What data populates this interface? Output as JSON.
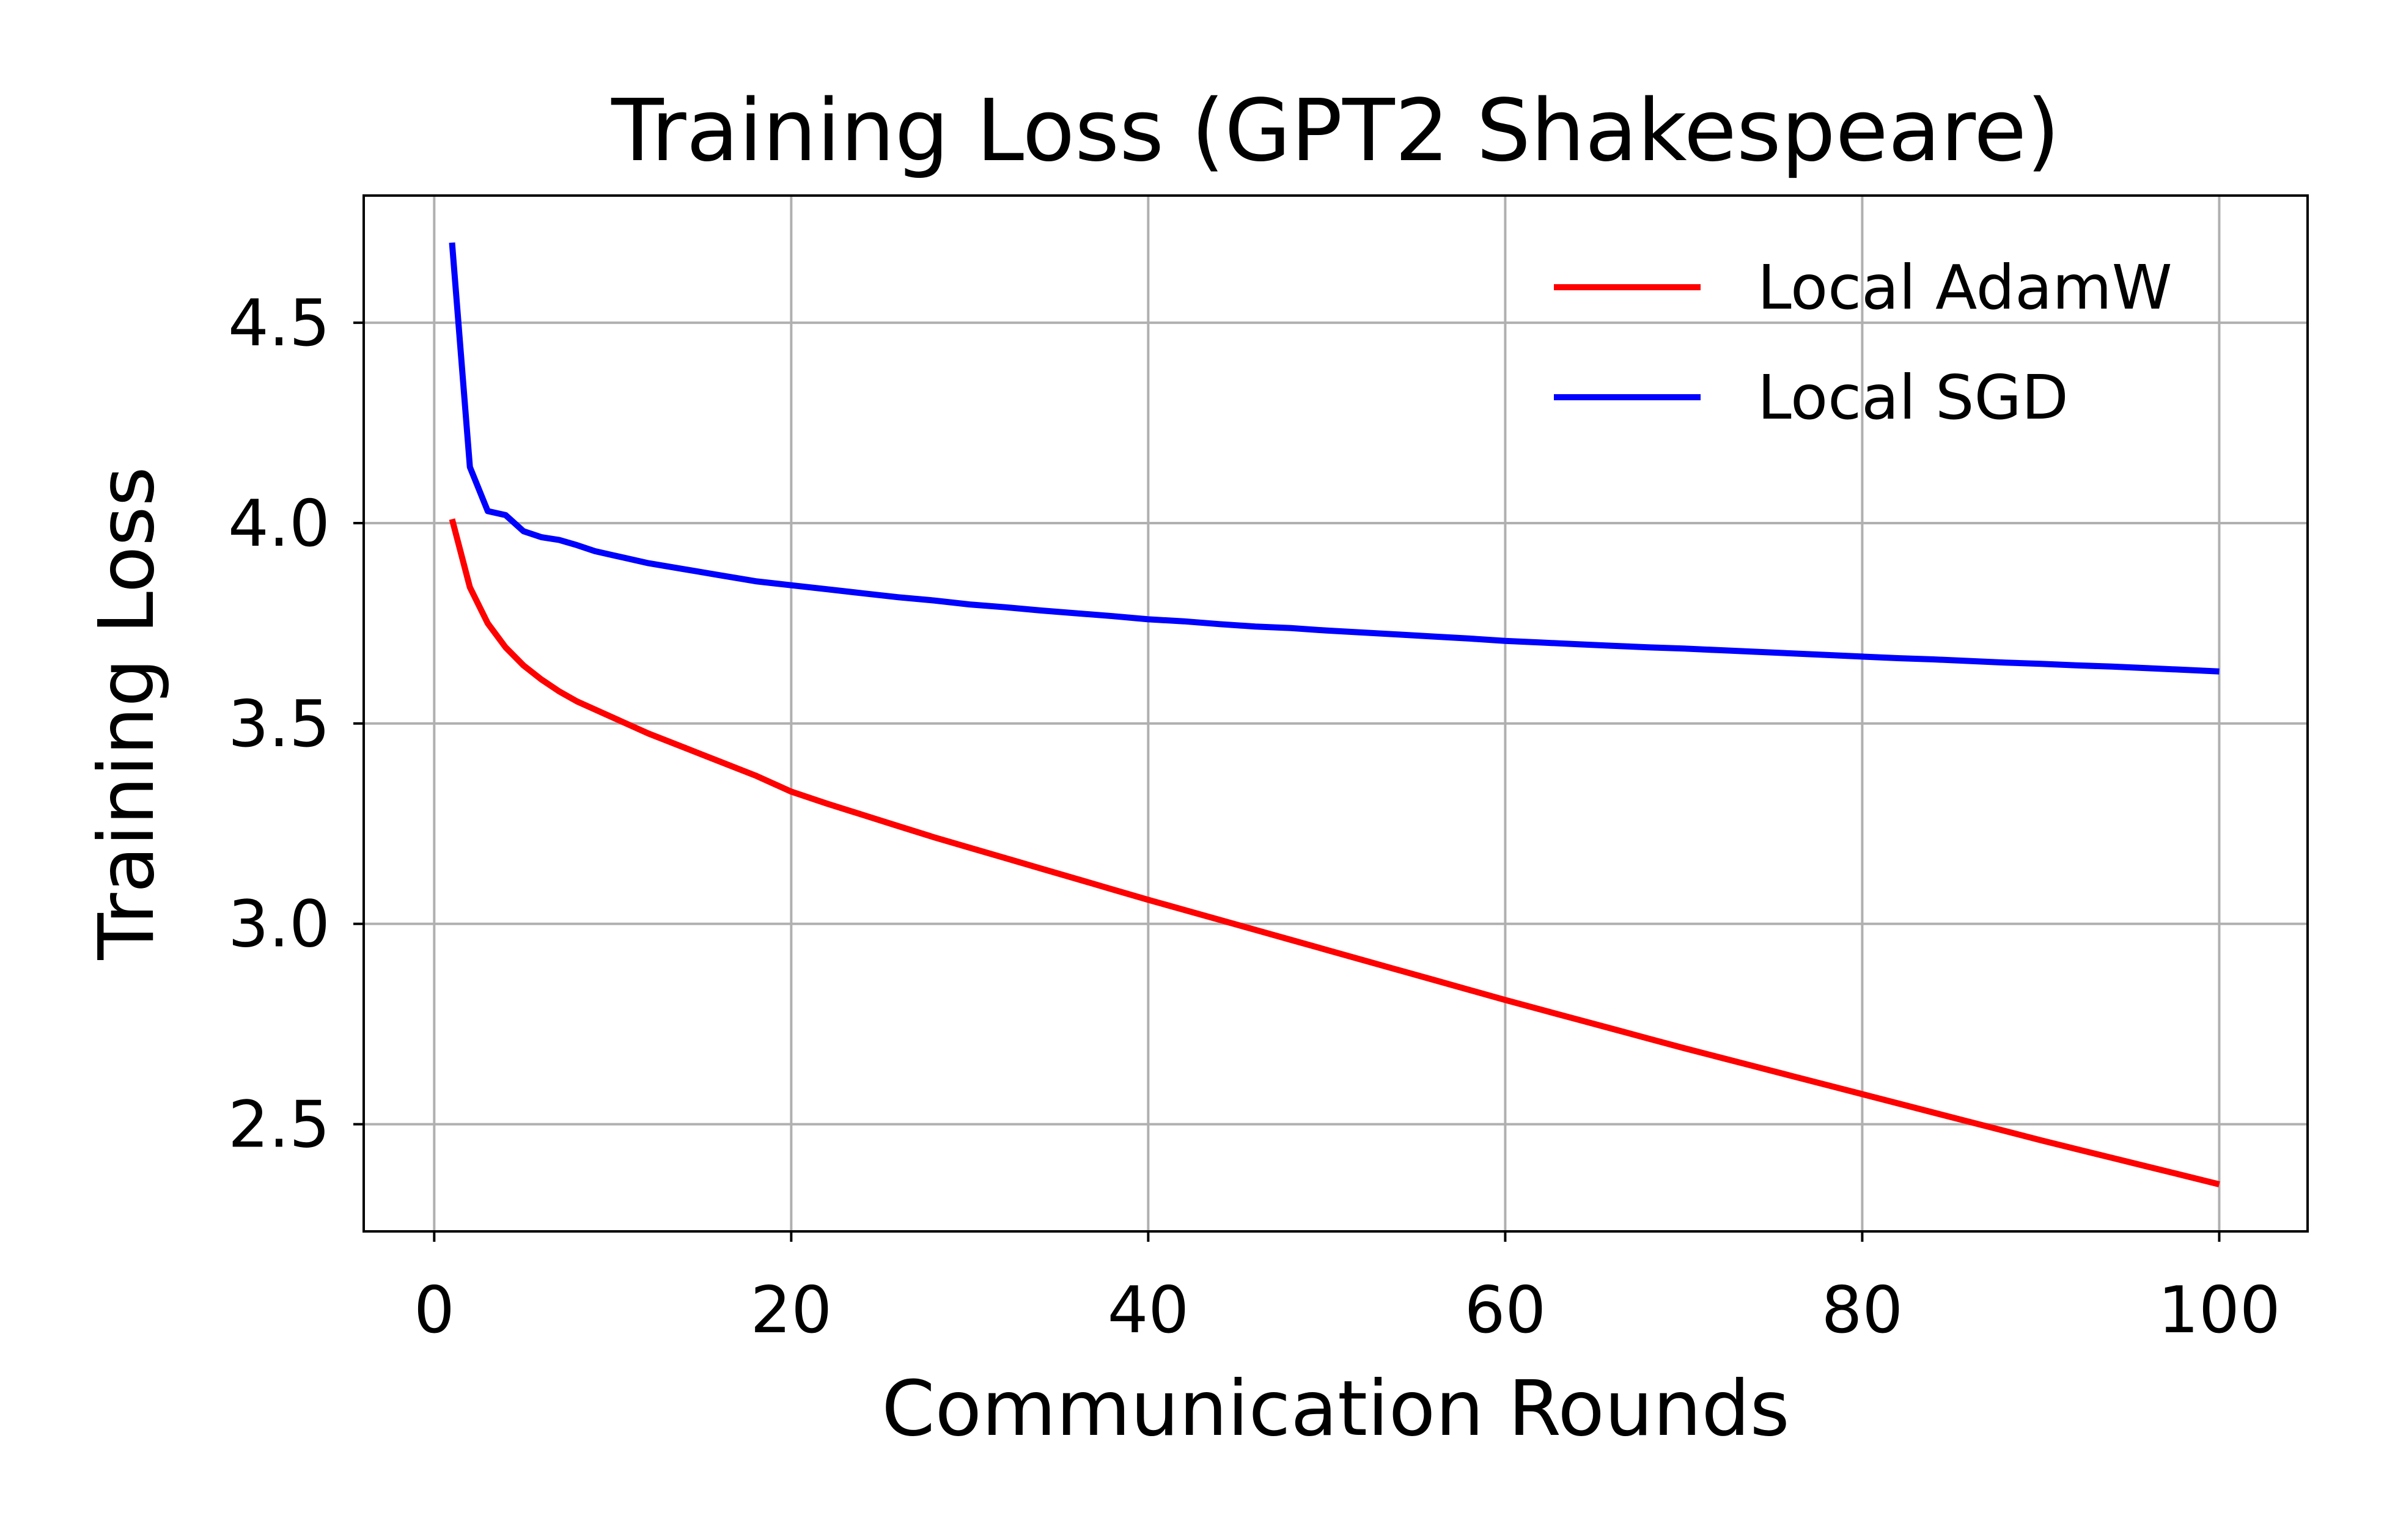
{
  "chart_data": {
    "type": "line",
    "title": "Training Loss (GPT2 Shakespeare)",
    "xlabel": "Communication Rounds",
    "ylabel": "Training Loss",
    "xlim": [
      -3.95,
      104.95
    ],
    "ylim": [
      2.2325,
      4.8175
    ],
    "xticks": [
      0,
      20,
      40,
      60,
      80,
      100
    ],
    "xtick_labels": [
      "0",
      "20",
      "40",
      "60",
      "80",
      "100"
    ],
    "yticks": [
      2.5,
      3.0,
      3.5,
      4.0,
      4.5
    ],
    "ytick_labels": [
      "2.5",
      "3.0",
      "3.5",
      "4.0",
      "4.5"
    ],
    "grid": true,
    "legend_position": "top-right",
    "x": [
      1,
      2,
      3,
      4,
      5,
      6,
      7,
      8,
      9,
      10,
      12,
      14,
      16,
      18,
      20,
      22,
      24,
      26,
      28,
      30,
      32,
      34,
      36,
      38,
      40,
      42,
      44,
      46,
      48,
      50,
      52,
      54,
      56,
      58,
      60,
      62,
      64,
      66,
      68,
      70,
      72,
      74,
      76,
      78,
      80,
      82,
      84,
      86,
      88,
      90,
      92,
      94,
      96,
      98,
      100
    ],
    "series": [
      {
        "name": "Local AdamW",
        "color": "#ff0000",
        "values": [
          4.01,
          3.84,
          3.75,
          3.69,
          3.645,
          3.61,
          3.58,
          3.555,
          3.535,
          3.515,
          3.475,
          3.44,
          3.405,
          3.37,
          3.33,
          3.3,
          3.272,
          3.244,
          3.216,
          3.19,
          3.164,
          3.138,
          3.112,
          3.086,
          3.06,
          3.035,
          3.01,
          2.985,
          2.96,
          2.935,
          2.91,
          2.885,
          2.86,
          2.835,
          2.81,
          2.786,
          2.762,
          2.738,
          2.714,
          2.69,
          2.667,
          2.644,
          2.621,
          2.598,
          2.575,
          2.552,
          2.529,
          2.506,
          2.483,
          2.46,
          2.438,
          2.416,
          2.394,
          2.372,
          2.35
        ]
      },
      {
        "name": "Local SGD",
        "color": "#0000ff",
        "values": [
          4.7,
          4.14,
          4.03,
          4.02,
          3.98,
          3.965,
          3.958,
          3.945,
          3.93,
          3.92,
          3.9,
          3.885,
          3.87,
          3.855,
          3.845,
          3.835,
          3.825,
          3.815,
          3.807,
          3.797,
          3.79,
          3.782,
          3.775,
          3.768,
          3.76,
          3.755,
          3.748,
          3.742,
          3.738,
          3.732,
          3.727,
          3.722,
          3.717,
          3.712,
          3.706,
          3.702,
          3.698,
          3.694,
          3.69,
          3.687,
          3.683,
          3.679,
          3.675,
          3.671,
          3.667,
          3.663,
          3.66,
          3.656,
          3.652,
          3.649,
          3.645,
          3.642,
          3.638,
          3.634,
          3.63
        ]
      }
    ]
  }
}
